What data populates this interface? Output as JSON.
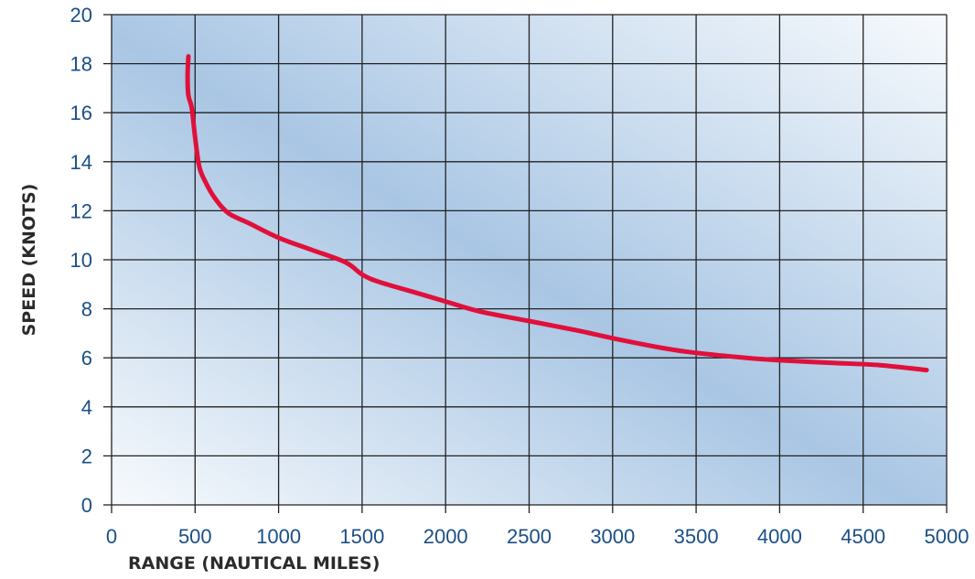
{
  "chart_data": {
    "type": "line",
    "title": "",
    "xlabel": "RANGE (NAUTICAL MILES)",
    "ylabel": "SPEED (KNOTS)",
    "xlim": [
      0,
      5000
    ],
    "ylim": [
      0,
      20
    ],
    "x_ticks": [
      0,
      500,
      1000,
      1500,
      2000,
      2500,
      3000,
      3500,
      4000,
      4500,
      5000
    ],
    "y_ticks": [
      0,
      2,
      4,
      6,
      8,
      10,
      12,
      14,
      16,
      18,
      20
    ],
    "grid": true,
    "legend": "none",
    "series": [
      {
        "color": "#e0103a",
        "x": [
          460,
          455,
          460,
          480,
          500,
          525,
          560,
          620,
          700,
          820,
          1000,
          1200,
          1400,
          1500,
          1600,
          1800,
          2000,
          2200,
          2500,
          2800,
          3000,
          3300,
          3500,
          3800,
          4000,
          4300,
          4600,
          4880
        ],
        "y": [
          18.3,
          17.5,
          16.7,
          16.2,
          15.0,
          13.8,
          13.2,
          12.5,
          11.9,
          11.5,
          10.9,
          10.4,
          9.9,
          9.4,
          9.1,
          8.7,
          8.3,
          7.9,
          7.5,
          7.1,
          6.8,
          6.4,
          6.2,
          6.0,
          5.9,
          5.8,
          5.7,
          5.5
        ]
      }
    ],
    "colors": {
      "plot_bg_light": "#f7fafd",
      "plot_bg_dark": "#a9c6e4",
      "grid": "#222222",
      "tick_label": "#1a4f86",
      "axis_title": "#2b2b2b",
      "line": "#e0103a"
    }
  }
}
